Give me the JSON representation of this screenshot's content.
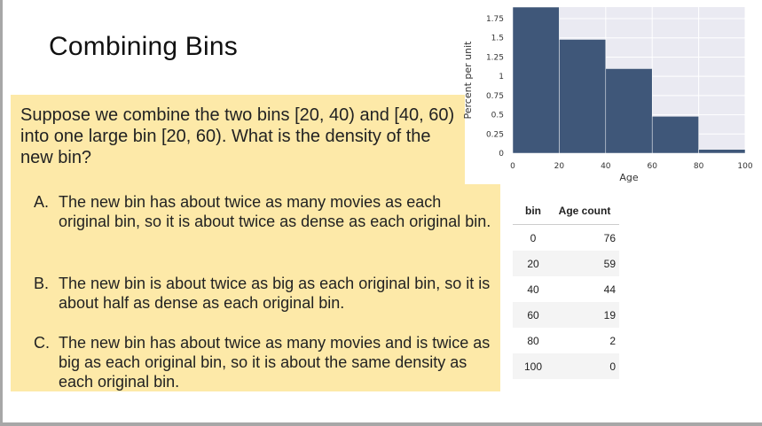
{
  "slide": {
    "title": "Combining Bins",
    "question": "Suppose we combine the two bins [20, 40) and [40, 60) into one large bin [20, 60). What is the density of the new bin?",
    "answers": [
      {
        "letter": "A.",
        "text": "The new bin has about twice as many movies as each original bin, so it is about twice as dense as each original bin."
      },
      {
        "letter": "B.",
        "text": "The new bin is about twice as big as each original bin, so it is about half as dense as each original bin."
      },
      {
        "letter": "C.",
        "text": "The new bin has about twice as many movies and is twice as big as each original bin, so it is about the same density as each original bin."
      }
    ]
  },
  "chart_data": {
    "type": "bar",
    "xlabel": "Age",
    "ylabel": "Percent per unit",
    "xlim": [
      0,
      100
    ],
    "ylim": [
      0,
      1.9
    ],
    "x_ticks": [
      "0",
      "20",
      "40",
      "60",
      "80",
      "100"
    ],
    "y_ticks": [
      "0",
      "0.25",
      "0.5",
      "0.75",
      "1",
      "1.25",
      "1.5",
      "1.75"
    ],
    "bins": [
      {
        "start": 0,
        "end": 20,
        "value": 1.9
      },
      {
        "start": 20,
        "end": 40,
        "value": 1.48
      },
      {
        "start": 40,
        "end": 60,
        "value": 1.1
      },
      {
        "start": 60,
        "end": 80,
        "value": 0.48
      },
      {
        "start": 80,
        "end": 100,
        "value": 0.05
      }
    ],
    "bar_color": "#3f5779",
    "grid": true
  },
  "table": {
    "headers": [
      "bin",
      "Age count"
    ],
    "rows": [
      [
        "0",
        "76"
      ],
      [
        "20",
        "59"
      ],
      [
        "40",
        "44"
      ],
      [
        "60",
        "19"
      ],
      [
        "80",
        "2"
      ],
      [
        "100",
        "0"
      ]
    ]
  }
}
